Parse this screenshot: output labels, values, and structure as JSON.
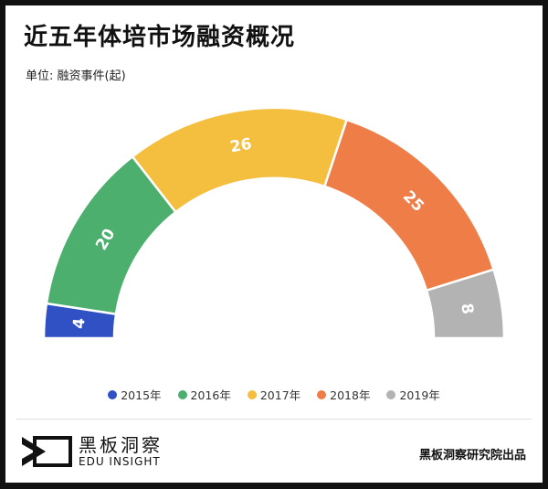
{
  "title": "近五年体培市场融资概况",
  "unit_label": "单位: 融资事件(起)",
  "chart_data": {
    "type": "pie",
    "variant": "semicircle-donut",
    "title": "近五年体培市场融资概况",
    "categories": [
      "2015年",
      "2016年",
      "2017年",
      "2018年",
      "2019年"
    ],
    "values": [
      4,
      20,
      26,
      25,
      8
    ],
    "colors": [
      "#2f51c4",
      "#4caf6e",
      "#f4be3e",
      "#ef7d48",
      "#b3b3b3"
    ],
    "data_labels": [
      "4",
      "20",
      "26",
      "25",
      "8"
    ],
    "legend_position": "bottom"
  },
  "footer": {
    "logo_cn": "黑板洞察",
    "logo_en": "EDU INSIGHT",
    "credit": "黑板洞察研究院出品"
  }
}
